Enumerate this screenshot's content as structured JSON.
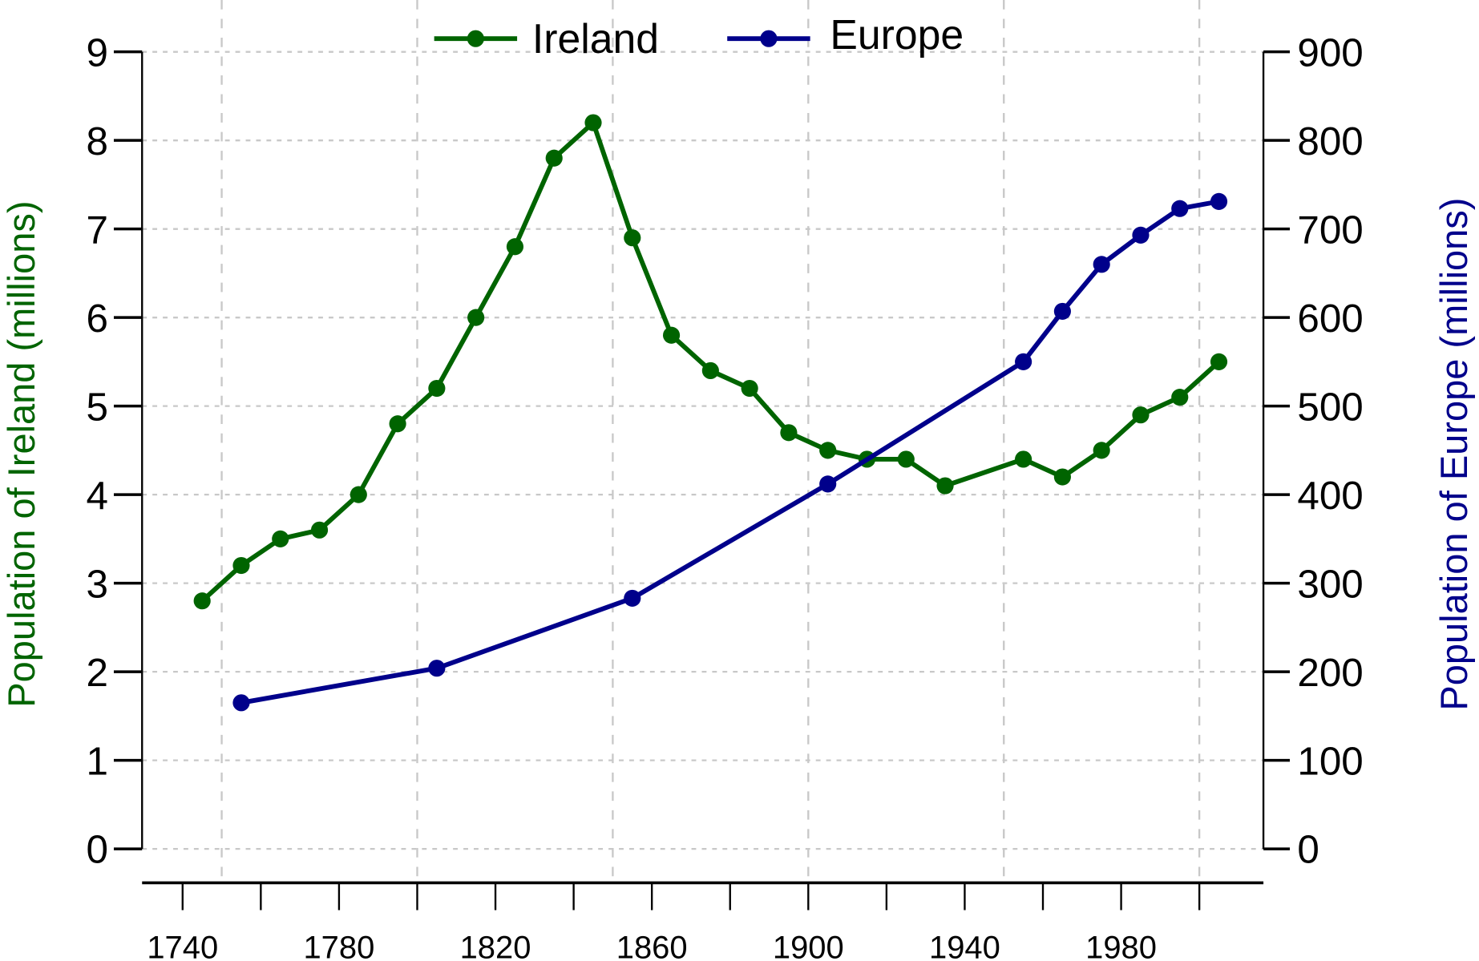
{
  "chart_data": {
    "type": "line",
    "title": "",
    "xlabel": "",
    "ylabel": "Population of Ireland (millions)",
    "y2label": "Population of Europe (millions)",
    "xlim": [
      1730,
      2016
    ],
    "ylim": [
      0,
      9
    ],
    "y2lim": [
      0,
      900
    ],
    "x_ticks": [
      "1740",
      "1780",
      "1820",
      "1860",
      "1900",
      "1940",
      "1980"
    ],
    "y_ticks": [
      "0",
      "1",
      "2",
      "3",
      "4",
      "5",
      "6",
      "7",
      "8",
      "9"
    ],
    "y2_ticks": [
      "0",
      "100",
      "200",
      "300",
      "400",
      "500",
      "600",
      "700",
      "800",
      "900"
    ],
    "grid": true,
    "legend_position": "top-center",
    "series": [
      {
        "name": "Ireland",
        "axis": "left",
        "color": "#006400",
        "x": [
          1745,
          1755,
          1765,
          1775,
          1785,
          1795,
          1805,
          1815,
          1825,
          1835,
          1845,
          1855,
          1865,
          1875,
          1885,
          1895,
          1905,
          1915,
          1925,
          1935,
          1955,
          1965,
          1975,
          1985,
          1995,
          2005
        ],
        "values": [
          2.8,
          3.2,
          3.5,
          3.6,
          4.0,
          4.8,
          5.2,
          6.0,
          6.8,
          7.8,
          8.2,
          6.9,
          5.8,
          5.4,
          5.2,
          4.7,
          4.5,
          4.4,
          4.4,
          4.1,
          4.4,
          4.2,
          4.5,
          4.9,
          5.1,
          5.5
        ]
      },
      {
        "name": "Europe",
        "axis": "right",
        "color": "#00008b",
        "x": [
          1755,
          1805,
          1855,
          1905,
          1955,
          1965,
          1975,
          1985,
          1995,
          2005
        ],
        "values": [
          165,
          204,
          283,
          412,
          550,
          607,
          660,
          693,
          723,
          731
        ]
      }
    ]
  }
}
